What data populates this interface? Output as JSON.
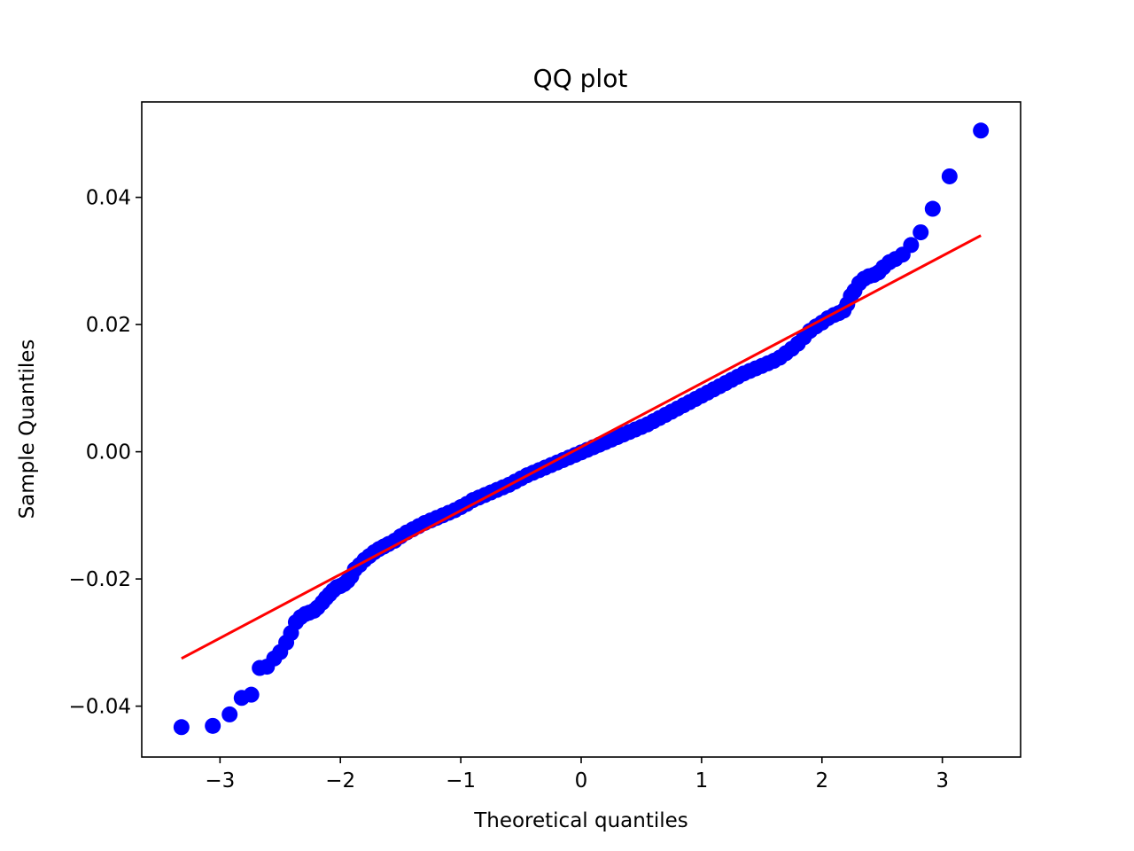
{
  "chart_data": {
    "type": "scatter",
    "title": "QQ plot",
    "xlabel": "Theoretical quantiles",
    "ylabel": "Sample Quantiles",
    "xlim": [
      -3.65,
      3.65
    ],
    "ylim": [
      -0.048,
      0.055
    ],
    "grid": false,
    "x_ticks": [
      {
        "value": -3,
        "label": "−3"
      },
      {
        "value": -2,
        "label": "−2"
      },
      {
        "value": -1,
        "label": "−1"
      },
      {
        "value": 0,
        "label": "0"
      },
      {
        "value": 1,
        "label": "1"
      },
      {
        "value": 2,
        "label": "2"
      },
      {
        "value": 3,
        "label": "3"
      }
    ],
    "y_ticks": [
      {
        "value": -0.04,
        "label": "−0.04"
      },
      {
        "value": -0.02,
        "label": "−0.02"
      },
      {
        "value": 0.0,
        "label": "0.00"
      },
      {
        "value": 0.02,
        "label": "0.02"
      },
      {
        "value": 0.04,
        "label": "0.04"
      }
    ],
    "series": [
      {
        "kind": "points",
        "color": "#0000ff",
        "points": [
          [
            -3.32,
            -0.0433
          ],
          [
            -3.06,
            -0.0431
          ],
          [
            -2.92,
            -0.0413
          ],
          [
            -2.82,
            -0.0387
          ],
          [
            -2.74,
            -0.0382
          ],
          [
            -2.67,
            -0.034
          ],
          [
            -2.61,
            -0.0338
          ],
          [
            -2.55,
            -0.0325
          ],
          [
            -2.5,
            -0.0315
          ],
          [
            -2.45,
            -0.03
          ],
          [
            -2.41,
            -0.0285
          ],
          [
            -2.37,
            -0.0268
          ],
          [
            -2.33,
            -0.026
          ],
          [
            -2.29,
            -0.0255
          ],
          [
            -2.26,
            -0.0253
          ],
          [
            -2.22,
            -0.025
          ],
          [
            -2.19,
            -0.0245
          ],
          [
            -2.15,
            -0.0237
          ],
          [
            -2.12,
            -0.023
          ],
          [
            -2.09,
            -0.0224
          ],
          [
            -2.06,
            -0.0218
          ],
          [
            -2.03,
            -0.0213
          ],
          [
            -2.0,
            -0.0211
          ],
          [
            -1.97,
            -0.0208
          ],
          [
            -1.94,
            -0.0203
          ],
          [
            -1.91,
            -0.0196
          ],
          [
            -1.88,
            -0.0185
          ],
          [
            -1.84,
            -0.0178
          ],
          [
            -1.8,
            -0.017
          ],
          [
            -1.76,
            -0.0164
          ],
          [
            -1.72,
            -0.0158
          ],
          [
            -1.68,
            -0.0153
          ],
          [
            -1.64,
            -0.0149
          ],
          [
            -1.6,
            -0.0145
          ],
          [
            -1.55,
            -0.014
          ],
          [
            -1.5,
            -0.0133
          ],
          [
            -1.45,
            -0.0127
          ],
          [
            -1.4,
            -0.0122
          ],
          [
            -1.35,
            -0.0117
          ],
          [
            -1.3,
            -0.0112
          ],
          [
            -1.25,
            -0.0108
          ],
          [
            -1.2,
            -0.0104
          ],
          [
            -1.15,
            -0.01
          ],
          [
            -1.1,
            -0.0096
          ],
          [
            -1.05,
            -0.0092
          ],
          [
            -1.0,
            -0.0087
          ],
          [
            -0.95,
            -0.0082
          ],
          [
            -0.9,
            -0.0076
          ],
          [
            -0.85,
            -0.0072
          ],
          [
            -0.8,
            -0.0068
          ],
          [
            -0.75,
            -0.0064
          ],
          [
            -0.7,
            -0.006
          ],
          [
            -0.65,
            -0.0056
          ],
          [
            -0.6,
            -0.0052
          ],
          [
            -0.55,
            -0.0047
          ],
          [
            -0.5,
            -0.0042
          ],
          [
            -0.45,
            -0.0037
          ],
          [
            -0.4,
            -0.0033
          ],
          [
            -0.35,
            -0.0029
          ],
          [
            -0.3,
            -0.0025
          ],
          [
            -0.25,
            -0.0021
          ],
          [
            -0.2,
            -0.0017
          ],
          [
            -0.15,
            -0.0013
          ],
          [
            -0.1,
            -0.0009
          ],
          [
            -0.05,
            -0.0005
          ],
          [
            0.0,
            -0.0001
          ],
          [
            0.05,
            0.0003
          ],
          [
            0.1,
            0.0007
          ],
          [
            0.15,
            0.0011
          ],
          [
            0.2,
            0.0015
          ],
          [
            0.25,
            0.0019
          ],
          [
            0.3,
            0.0023
          ],
          [
            0.35,
            0.0027
          ],
          [
            0.4,
            0.0031
          ],
          [
            0.45,
            0.0035
          ],
          [
            0.5,
            0.0039
          ],
          [
            0.55,
            0.0043
          ],
          [
            0.6,
            0.0048
          ],
          [
            0.65,
            0.0053
          ],
          [
            0.7,
            0.0058
          ],
          [
            0.75,
            0.0063
          ],
          [
            0.8,
            0.0068
          ],
          [
            0.85,
            0.0073
          ],
          [
            0.9,
            0.0078
          ],
          [
            0.95,
            0.0083
          ],
          [
            1.0,
            0.0088
          ],
          [
            1.05,
            0.0093
          ],
          [
            1.1,
            0.0098
          ],
          [
            1.15,
            0.0103
          ],
          [
            1.2,
            0.0108
          ],
          [
            1.25,
            0.0113
          ],
          [
            1.3,
            0.0118
          ],
          [
            1.35,
            0.0123
          ],
          [
            1.4,
            0.0127
          ],
          [
            1.45,
            0.0131
          ],
          [
            1.5,
            0.0135
          ],
          [
            1.55,
            0.0139
          ],
          [
            1.6,
            0.0143
          ],
          [
            1.65,
            0.0148
          ],
          [
            1.7,
            0.0155
          ],
          [
            1.75,
            0.0162
          ],
          [
            1.8,
            0.017
          ],
          [
            1.85,
            0.018
          ],
          [
            1.9,
            0.019
          ],
          [
            1.95,
            0.0197
          ],
          [
            2.0,
            0.0203
          ],
          [
            2.05,
            0.021
          ],
          [
            2.1,
            0.0215
          ],
          [
            2.14,
            0.0218
          ],
          [
            2.18,
            0.0222
          ],
          [
            2.21,
            0.0232
          ],
          [
            2.24,
            0.0245
          ],
          [
            2.27,
            0.0253
          ],
          [
            2.31,
            0.0265
          ],
          [
            2.35,
            0.0272
          ],
          [
            2.39,
            0.0276
          ],
          [
            2.43,
            0.0278
          ],
          [
            2.47,
            0.0282
          ],
          [
            2.51,
            0.029
          ],
          [
            2.56,
            0.0298
          ],
          [
            2.61,
            0.0303
          ],
          [
            2.67,
            0.031
          ],
          [
            2.74,
            0.0325
          ],
          [
            2.82,
            0.0345
          ],
          [
            2.92,
            0.0382
          ],
          [
            3.06,
            0.0433
          ],
          [
            3.32,
            0.0505
          ]
        ]
      },
      {
        "kind": "line",
        "color": "#ff0000",
        "points": [
          [
            -3.32,
            -0.0325
          ],
          [
            3.32,
            0.034
          ]
        ]
      }
    ]
  }
}
